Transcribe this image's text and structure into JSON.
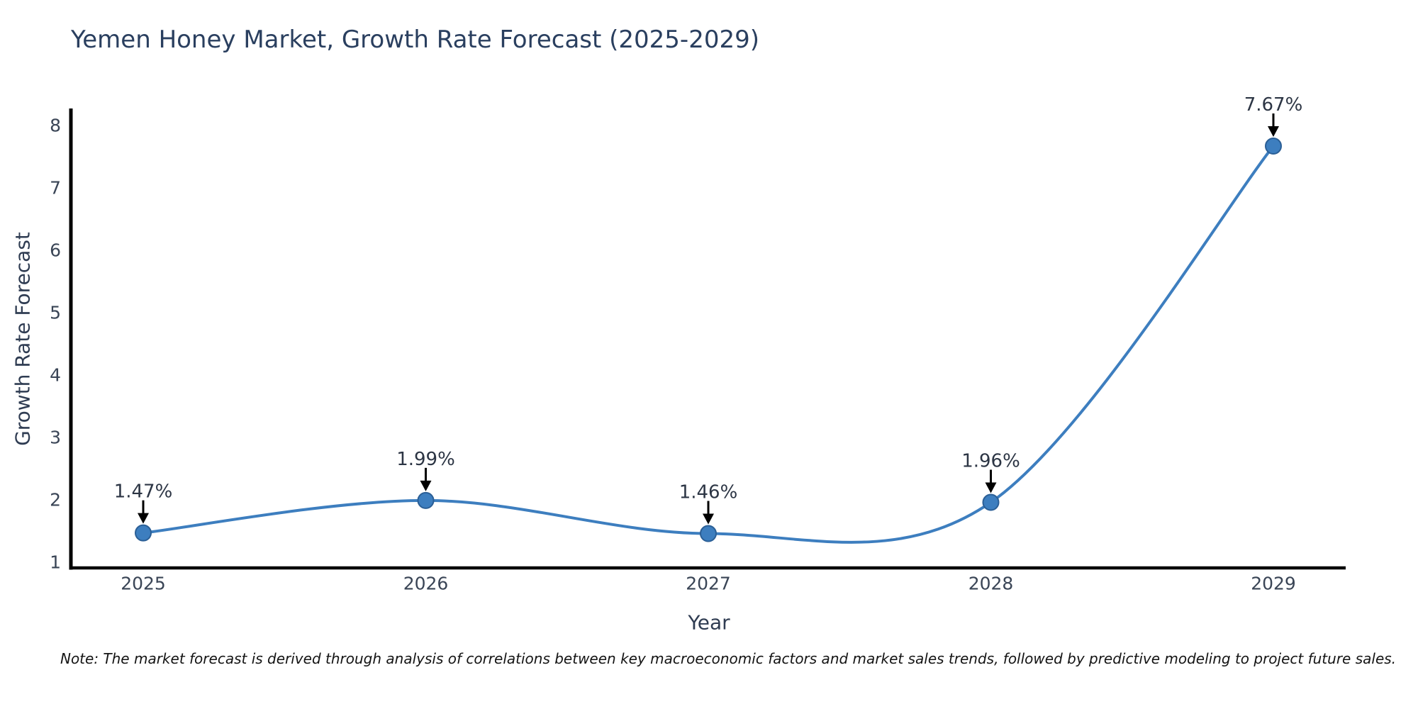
{
  "title": "Yemen Honey Market, Growth Rate Forecast (2025-2029)",
  "note": "Note: The market forecast is derived through analysis of correlations between key macroeconomic factors and market sales trends, followed by predictive modeling to project future sales.",
  "chart_data": {
    "type": "line",
    "title": "Yemen Honey Market, Growth Rate Forecast (2025-2029)",
    "x": [
      2025,
      2026,
      2027,
      2028,
      2029
    ],
    "values": [
      1.47,
      1.99,
      1.46,
      1.96,
      7.67
    ],
    "point_labels": [
      "1.47%",
      "1.99%",
      "1.46%",
      "1.96%",
      "7.67%"
    ],
    "xlabel": "Year",
    "ylabel": "Growth Rate Forecast",
    "yticks": [
      1,
      2,
      3,
      4,
      5,
      6,
      7,
      8
    ],
    "ylim": [
      0.9,
      8.2
    ],
    "grid": false,
    "legend": "none",
    "smooth": true,
    "annotation_style": "value label above point with downward black arrow"
  },
  "colors": {
    "line": "#3d7ebf",
    "marker_fill": "#3d7ebf",
    "marker_edge": "#2b5f96",
    "axis": "#000000",
    "arrow": "#000000",
    "tick_text": "#3a4556",
    "annotation_text": "#2c3544",
    "title_text": "#2a3f5f",
    "background": "#ffffff"
  }
}
